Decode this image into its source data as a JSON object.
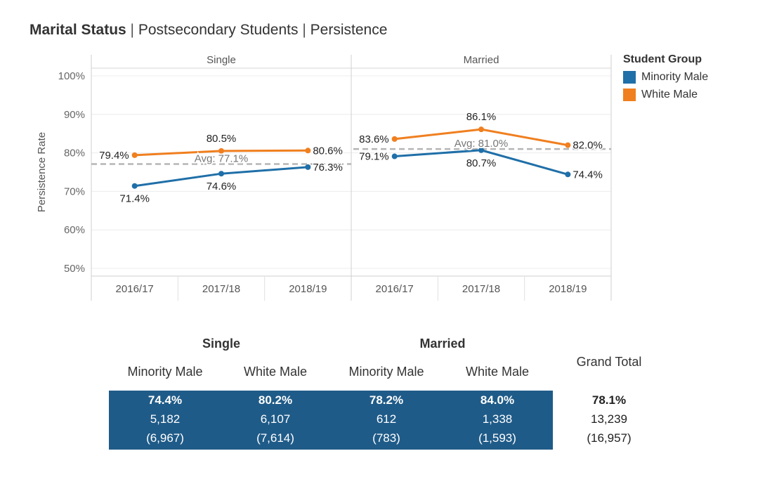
{
  "title": {
    "bold": "Marital Status",
    "rest_1": "Postsecondary Students",
    "rest_2": "Persistence",
    "separator": "|"
  },
  "chart_data": {
    "type": "line",
    "ylabel": "Persistence Rate",
    "ylim": [
      48,
      102
    ],
    "y_ticks": [
      "100%",
      "90%",
      "80%",
      "70%",
      "60%",
      "50%"
    ],
    "y_tick_values": [
      100,
      90,
      80,
      70,
      60,
      50
    ],
    "grid": true,
    "legend": {
      "title": "Student Group",
      "placement": "right",
      "items": [
        {
          "label": "Minority Male",
          "color": "#1f6fa8"
        },
        {
          "label": "White Male",
          "color": "#f07f1f"
        }
      ]
    },
    "panels": [
      {
        "name": "Single",
        "categories": [
          "2016/17",
          "2017/18",
          "2018/19"
        ],
        "avg_label": "Avg: 77.1%",
        "avg_value": 77.1,
        "series": [
          {
            "name": "Minority Male",
            "color": "#1f6fa8",
            "values": [
              71.4,
              74.6,
              76.3
            ],
            "labels": [
              "71.4%",
              "74.6%",
              "76.3%"
            ],
            "label_pos": [
              "below",
              "below",
              "right"
            ]
          },
          {
            "name": "White Male",
            "color": "#f07f1f",
            "values": [
              79.4,
              80.5,
              80.6
            ],
            "labels": [
              "79.4%",
              "80.5%",
              "80.6%"
            ],
            "label_pos": [
              "left",
              "above",
              "right"
            ]
          }
        ]
      },
      {
        "name": "Married",
        "categories": [
          "2016/17",
          "2017/18",
          "2018/19"
        ],
        "avg_label": "Avg: 81.0%",
        "avg_value": 81.0,
        "series": [
          {
            "name": "Minority Male",
            "color": "#1f6fa8",
            "values": [
              79.1,
              80.7,
              74.4
            ],
            "labels": [
              "79.1%",
              "80.7%",
              "74.4%"
            ],
            "label_pos": [
              "left",
              "below",
              "right"
            ]
          },
          {
            "name": "White Male",
            "color": "#f07f1f",
            "values": [
              83.6,
              86.1,
              82.0
            ],
            "labels": [
              "83.6%",
              "86.1%",
              "82.0%"
            ],
            "label_pos": [
              "left",
              "above",
              "right"
            ]
          }
        ]
      }
    ]
  },
  "table": {
    "group_headers": [
      "Single",
      "Married"
    ],
    "column_headers": [
      "Minority Male",
      "White Male",
      "Minority Male",
      "White Male"
    ],
    "grand_total_header": "Grand Total",
    "columns": [
      {
        "pct": "74.4%",
        "count": "5,182",
        "total": "(6,967)"
      },
      {
        "pct": "80.2%",
        "count": "6,107",
        "total": "(7,614)"
      },
      {
        "pct": "78.2%",
        "count": "612",
        "total": "(783)"
      },
      {
        "pct": "84.0%",
        "count": "1,338",
        "total": "(1,593)"
      }
    ],
    "grand_total": {
      "pct": "78.1%",
      "count": "13,239",
      "total": "(16,957)"
    },
    "block_color": "#1f5b88"
  }
}
